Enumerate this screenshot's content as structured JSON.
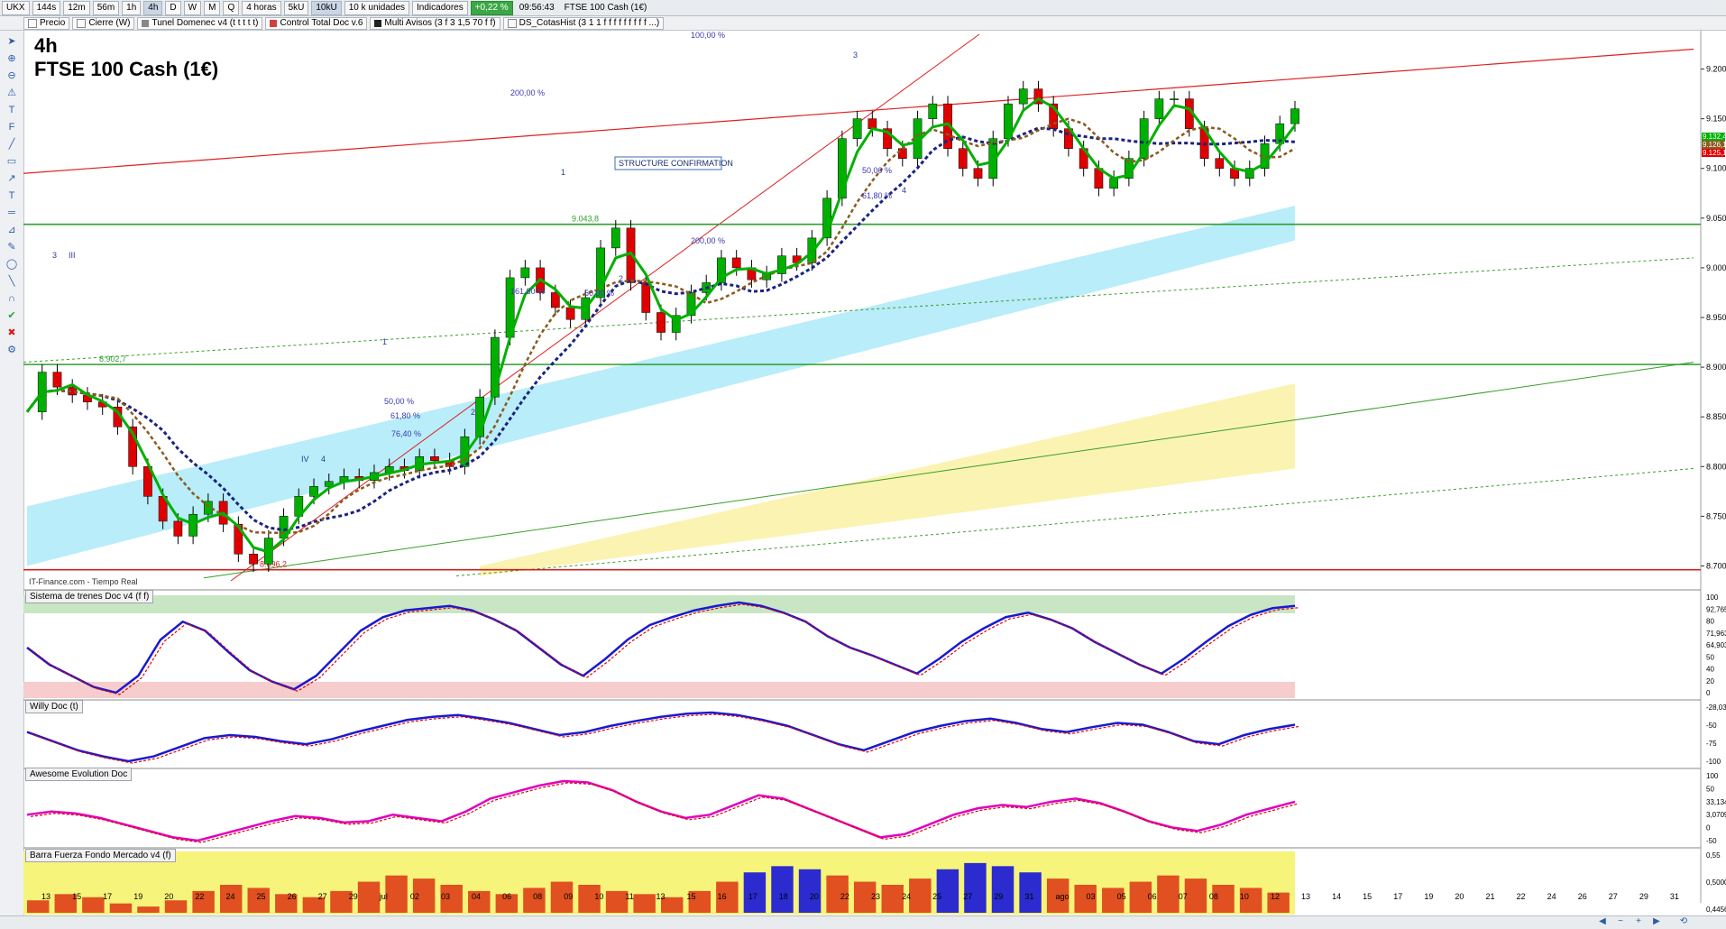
{
  "toolbar": {
    "symbol": "UKX",
    "timeframes": [
      "144s",
      "12m",
      "56m",
      "1h",
      "4h",
      "D",
      "W",
      "M",
      "Q"
    ],
    "selected_timeframe": "4h",
    "period_select": "4 horas",
    "size_buttons": [
      "5kU",
      "10kU"
    ],
    "selected_size": "10kU",
    "units_select": "10 k unidades",
    "indicators_label": "Indicadores",
    "change_pct": "+0,22 %",
    "time": "09:56:43",
    "instrument": "FTSE 100 Cash (1€)"
  },
  "indicators_bar": [
    {
      "label": "Precio",
      "color": "#ffffff"
    },
    {
      "label": "Cierre (W)",
      "color": "#ffffff"
    },
    {
      "label": "Tunel Domenec v4 (t t t t t)",
      "color": "#888888"
    },
    {
      "label": "Control Total Doc v.6",
      "color": "#d04040"
    },
    {
      "label": "Multi Avisos (3 f 3 1,5 70 f f)",
      "color": "#222222"
    },
    {
      "label": "DS_CotasHist (3 1 1 f f f f f f f f f ...)",
      "color": "#ffffff"
    }
  ],
  "chart_title": {
    "timeframe": "4h",
    "name": "FTSE 100 Cash (1€)"
  },
  "source": "IT-Finance.com - Tiempo Real",
  "colors": {
    "up": "#ffff00",
    "down": "#2b2bd0",
    "bull": "#00b000",
    "bear": "#e00000",
    "trendline": "#e02020",
    "support": "#3a9e2a",
    "cloud_blue": "#a6e9f7",
    "cloud_yellow": "#fbf2a8"
  },
  "chart_data": {
    "type": "line",
    "title": "FTSE 100 Cash (1€)",
    "timeframe": "4h",
    "ylim": [
      8685,
      9235
    ],
    "y_ticks": [
      8700,
      8750,
      8800,
      8850,
      8900,
      8950,
      9000,
      9050,
      9100,
      9150,
      9200
    ],
    "y_tick_labels": [
      "8.700",
      "8.750",
      "8.800",
      "8.850",
      "8.900",
      "8.950",
      "9.000",
      "9.050",
      "9.100",
      "9.150",
      "9.200"
    ],
    "x_tick_labels": [
      "13",
      "15",
      "17",
      "19",
      "20",
      "22",
      "24",
      "25",
      "26",
      "27",
      "29",
      "jul",
      "02",
      "03",
      "04",
      "06",
      "08",
      "09",
      "10",
      "11",
      "13",
      "15",
      "16",
      "17",
      "18",
      "20",
      "22",
      "23",
      "24",
      "25",
      "27",
      "29",
      "31",
      "ago",
      "03",
      "05",
      "06",
      "07",
      "08",
      "10",
      "12",
      "13",
      "14",
      "15",
      "17",
      "19",
      "20",
      "21",
      "22",
      "24",
      "26",
      "27",
      "29",
      "31"
    ],
    "series": [
      {
        "name": "",
        "values": [
          8855,
          8895,
          8880,
          8872,
          8865,
          8860,
          8840,
          8800,
          8770,
          8745,
          8730,
          8752,
          8765,
          8742,
          8712,
          8702,
          8728,
          8750,
          8770,
          8780,
          8785,
          8790,
          8786,
          8794,
          8800,
          8796,
          8810,
          8806,
          8800,
          8830,
          8870,
          8930,
          8990,
          9000,
          8975,
          8960,
          8948,
          8970,
          9020,
          9040,
          8985,
          8955,
          8935,
          8952,
          8975,
          8985,
          9010,
          9000,
          8988,
          8994,
          9012,
          9005,
          9030,
          9070,
          9130,
          9150,
          9140,
          9120,
          9110,
          9150,
          9165,
          9120,
          9100,
          9090,
          9130,
          9165,
          9180,
          9165,
          9140,
          9120,
          9100,
          9080,
          9090,
          9110,
          9150,
          9170,
          9170,
          9140,
          9110,
          9100,
          9090,
          9100,
          9125,
          9145,
          9160
        ]
      }
    ],
    "support_levels": [
      {
        "value": 9043.8,
        "label": "9.043,8"
      },
      {
        "value": 8902.7,
        "label": "8.902,7"
      },
      {
        "value": 8696.2,
        "label": "8.696,2"
      }
    ],
    "last_price_labels": [
      "9.132,4",
      "9.126,1",
      "9.125,1"
    ],
    "annotations": [
      "STRUCTURE CONFIRMATION",
      "100,00 %",
      "200,00 %",
      "200,00 %",
      "161,80 %",
      "50,00 %",
      "50,00 %",
      "61,80 %",
      "61,80 %",
      "76,40 %",
      "50,00 %",
      "1",
      "2",
      "3",
      "4",
      "1",
      "2",
      "3",
      "III",
      "IV",
      "4"
    ],
    "grid": false
  },
  "panels": [
    {
      "name": "Sistema de trenes Doc v4 (f f)",
      "ticks": [
        "100",
        "92,765",
        "80",
        "71,963",
        "64,903",
        "50",
        "40",
        "20",
        "0"
      ],
      "line_values": [
        55,
        40,
        30,
        20,
        15,
        30,
        62,
        78,
        70,
        52,
        35,
        25,
        18,
        30,
        50,
        70,
        82,
        88,
        90,
        92,
        88,
        80,
        70,
        55,
        40,
        30,
        45,
        62,
        75,
        82,
        88,
        92,
        95,
        92,
        86,
        78,
        65,
        55,
        48,
        40,
        32,
        45,
        60,
        72,
        82,
        86,
        80,
        72,
        60,
        50,
        40,
        32,
        45,
        60,
        74,
        84,
        90,
        92
      ]
    },
    {
      "name": "Willy Doc (t)",
      "ticks": [
        "-28,03",
        "-50",
        "-75",
        "-100"
      ],
      "line_values": [
        -40,
        -55,
        -70,
        -80,
        -88,
        -80,
        -65,
        -50,
        -45,
        -48,
        -55,
        -60,
        -52,
        -40,
        -30,
        -20,
        -15,
        -12,
        -18,
        -25,
        -35,
        -45,
        -40,
        -30,
        -22,
        -15,
        -10,
        -8,
        -12,
        -20,
        -30,
        -45,
        -60,
        -70,
        -55,
        -40,
        -30,
        -22,
        -18,
        -25,
        -35,
        -40,
        -32,
        -25,
        -28,
        -40,
        -55,
        -60,
        -45,
        -35,
        -28
      ]
    },
    {
      "name": "Awesome Evolution Doc",
      "ticks": [
        "100",
        "50",
        "33,134",
        "3,0709",
        "0",
        "-50"
      ],
      "line_values": [
        10,
        15,
        12,
        5,
        -5,
        -15,
        -25,
        -30,
        -20,
        -10,
        0,
        8,
        5,
        -2,
        0,
        10,
        5,
        0,
        15,
        35,
        45,
        55,
        62,
        60,
        48,
        30,
        15,
        5,
        10,
        25,
        40,
        35,
        20,
        5,
        -10,
        -25,
        -20,
        -5,
        10,
        20,
        25,
        22,
        30,
        35,
        28,
        15,
        0,
        -10,
        -15,
        -5,
        10,
        20,
        30
      ]
    },
    {
      "name": "Barra Fuerza Fondo Mercado v4 (f)",
      "ticks": [
        "0,55",
        "0,5000",
        "0,4456"
      ],
      "bar_values": [
        0.42,
        0.44,
        0.43,
        0.41,
        0.4,
        0.42,
        0.45,
        0.47,
        0.46,
        0.44,
        0.43,
        0.45,
        0.48,
        0.5,
        0.49,
        0.47,
        0.45,
        0.44,
        0.46,
        0.48,
        0.47,
        0.45,
        0.44,
        0.43,
        0.45,
        0.48,
        0.51,
        0.53,
        0.52,
        0.5,
        0.48,
        0.47,
        0.49,
        0.52,
        0.54,
        0.53,
        0.51,
        0.49,
        0.47,
        0.46,
        0.48,
        0.5,
        0.49,
        0.47,
        0.46,
        0.445
      ]
    }
  ]
}
